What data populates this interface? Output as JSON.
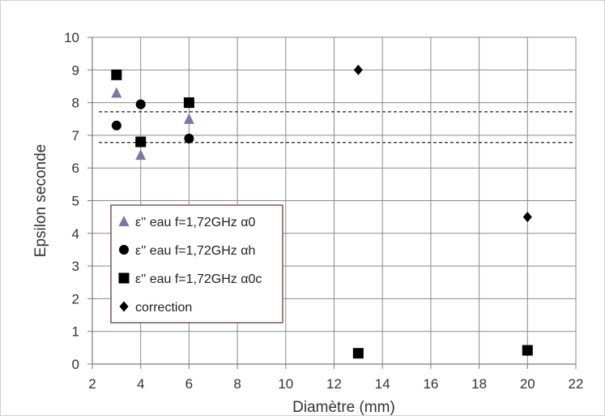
{
  "chart_data": {
    "type": "scatter",
    "title": "",
    "xlabel": "Diamètre (mm)",
    "ylabel": "Epsilon seconde",
    "xlim": [
      2,
      22
    ],
    "ylim": [
      0,
      10
    ],
    "x_ticks": [
      "2",
      "4",
      "6",
      "8",
      "10",
      "12",
      "14",
      "16",
      "18",
      "20",
      "22"
    ],
    "y_ticks": [
      "0",
      "1",
      "2",
      "3",
      "4",
      "5",
      "6",
      "7",
      "8",
      "9",
      "10"
    ],
    "grid": true,
    "legend_position": "left",
    "series": [
      {
        "name": "ε'' eau f=1,72GHz α0",
        "marker": "triangle",
        "color": "#7b78a8",
        "points": [
          [
            3,
            8.3
          ],
          [
            4,
            6.4
          ],
          [
            6,
            7.5
          ]
        ]
      },
      {
        "name": "ε'' eau f=1,72GHz αh",
        "marker": "circle",
        "color": "#000000",
        "points": [
          [
            3,
            7.3
          ],
          [
            4,
            7.95
          ],
          [
            6,
            6.9
          ]
        ]
      },
      {
        "name": "ε'' eau f=1,72GHz α0c",
        "marker": "square",
        "color": "#000000",
        "points": [
          [
            3,
            8.85
          ],
          [
            4,
            6.8
          ],
          [
            6,
            8.0
          ],
          [
            13,
            0.33
          ],
          [
            20,
            0.42
          ]
        ]
      },
      {
        "name": "correction",
        "marker": "diamond",
        "color": "#000000",
        "points": [
          [
            13,
            9.0
          ],
          [
            20,
            4.5
          ]
        ]
      }
    ],
    "reference_lines": [
      {
        "y": 7.72,
        "style": "dashed"
      },
      {
        "y": 6.78,
        "style": "dashed"
      }
    ]
  }
}
